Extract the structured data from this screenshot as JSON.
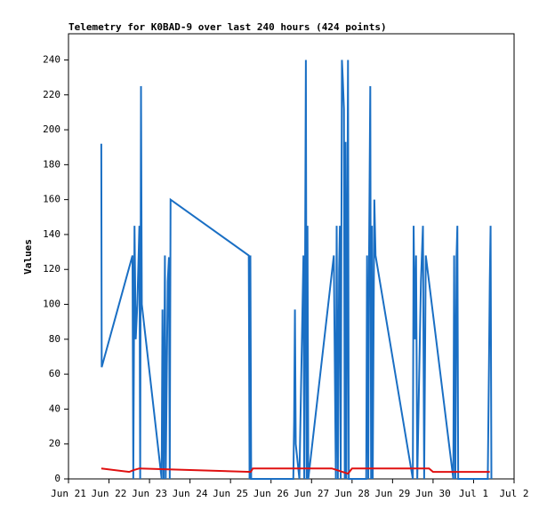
{
  "chart_data": {
    "type": "line",
    "title": "Telemetry for K0BAD-9 over last 240 hours (424 points)",
    "y_label": "Values",
    "xlim": [
      0,
      11
    ],
    "ylim": [
      0,
      255
    ],
    "xticks": [
      {
        "value": 0,
        "label": "Jun 21"
      },
      {
        "value": 1,
        "label": "Jun 22"
      },
      {
        "value": 2,
        "label": "Jun 23"
      },
      {
        "value": 3,
        "label": "Jun 24"
      },
      {
        "value": 4,
        "label": "Jun 25"
      },
      {
        "value": 5,
        "label": "Jun 26"
      },
      {
        "value": 6,
        "label": "Jun 27"
      },
      {
        "value": 7,
        "label": "Jun 28"
      },
      {
        "value": 8,
        "label": "Jun 29"
      },
      {
        "value": 9,
        "label": "Jun 30"
      },
      {
        "value": 10,
        "label": "Jul 1"
      },
      {
        "value": 11,
        "label": "Jul 2"
      }
    ],
    "yticks": [
      0,
      20,
      40,
      60,
      80,
      100,
      120,
      140,
      160,
      180,
      200,
      220,
      240
    ],
    "series": [
      {
        "color": "#1a6fc4",
        "x": [
          0.81,
          0.82,
          1.58,
          1.6,
          1.63,
          1.66,
          1.7,
          1.75,
          1.77,
          1.79,
          1.81,
          2.3,
          2.32,
          2.35,
          2.38,
          2.4,
          2.45,
          2.48,
          2.5,
          2.52,
          4.45,
          4.47,
          4.49,
          4.51,
          5.55,
          5.57,
          5.59,
          5.61,
          5.7,
          5.8,
          5.82,
          5.86,
          5.88,
          5.9,
          5.92,
          6.55,
          6.6,
          6.62,
          6.65,
          6.68,
          6.7,
          6.72,
          6.75,
          6.77,
          6.8,
          6.82,
          6.84,
          6.86,
          6.9,
          6.92,
          7.35,
          7.37,
          7.4,
          7.42,
          7.45,
          7.47,
          7.49,
          7.51,
          7.55,
          7.58,
          8.5,
          8.52,
          8.55,
          8.58,
          8.61,
          8.7,
          8.75,
          8.78,
          8.82,
          9.5,
          9.52,
          9.55,
          9.58,
          9.6,
          9.62,
          10.35,
          10.38,
          10.4,
          10.42,
          10.44
        ],
        "values": [
          192,
          64,
          128,
          0,
          145,
          80,
          100,
          145,
          0,
          225,
          100,
          0,
          97,
          0,
          128,
          0,
          113,
          127,
          0,
          160,
          128,
          0,
          128,
          0,
          0,
          33,
          97,
          20,
          0,
          128,
          0,
          240,
          0,
          145,
          0,
          128,
          0,
          145,
          0,
          120,
          145,
          0,
          240,
          230,
          212,
          0,
          193,
          0,
          240,
          0,
          0,
          128,
          0,
          128,
          225,
          0,
          145,
          0,
          160,
          128,
          0,
          145,
          80,
          128,
          0,
          113,
          145,
          0,
          128,
          0,
          128,
          0,
          128,
          145,
          0,
          0,
          65,
          113,
          145,
          0
        ]
      },
      {
        "color": "#e01010",
        "x": [
          0.81,
          1.5,
          1.6,
          1.75,
          4.5,
          4.55,
          6.5,
          6.9,
          7.0,
          8.9,
          9.0,
          10.4
        ],
        "values": [
          6,
          4,
          5,
          6,
          4,
          6,
          6,
          3,
          6,
          6,
          4,
          4
        ]
      }
    ]
  }
}
